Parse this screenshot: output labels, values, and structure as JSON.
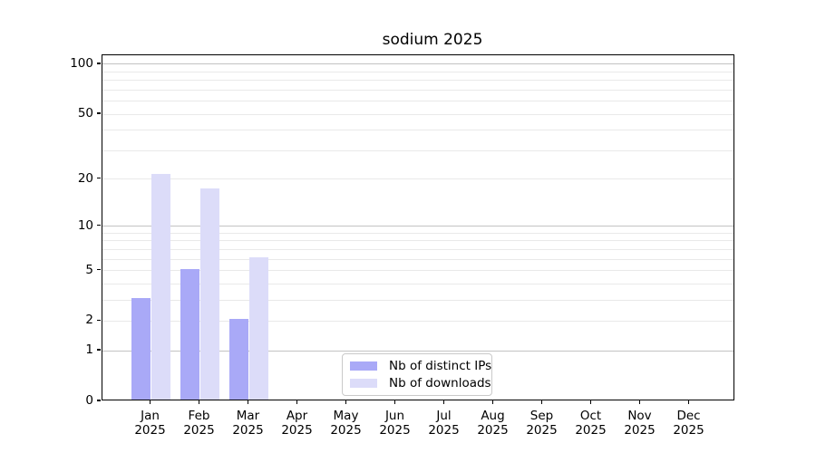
{
  "title": "sodium 2025",
  "chart_data": {
    "type": "bar",
    "title": "sodium 2025",
    "categories": [
      "Jan",
      "Feb",
      "Mar",
      "Apr",
      "May",
      "Jun",
      "Jul",
      "Aug",
      "Sep",
      "Oct",
      "Nov",
      "Dec"
    ],
    "category_year": "2025",
    "series": [
      {
        "name": "Nb of distinct IPs",
        "color": "#a9a9f7",
        "values": [
          3,
          5,
          2,
          0,
          0,
          0,
          0,
          0,
          0,
          0,
          0,
          0
        ]
      },
      {
        "name": "Nb of downloads",
        "color": "#dcdcf9",
        "values": [
          21,
          17,
          6,
          0,
          0,
          0,
          0,
          0,
          0,
          0,
          0,
          0
        ]
      }
    ],
    "yscale": "log10(1+y)",
    "ylim": [
      0,
      113
    ],
    "y_major_ticks": [
      0,
      1,
      2,
      5,
      10,
      20,
      50,
      100
    ],
    "y_minor_ticks": [
      3,
      4,
      6,
      7,
      8,
      9,
      30,
      40,
      60,
      70,
      80,
      90
    ],
    "y_decade_lines": [
      1,
      10,
      100
    ],
    "grid": "both",
    "legend_position": "lower center"
  },
  "legend": {
    "items": [
      {
        "label": "Nb of distinct IPs",
        "color": "#a9a9f7"
      },
      {
        "label": "Nb of downloads",
        "color": "#dcdcf9"
      }
    ]
  },
  "colors": {
    "background": "#ffffff",
    "bar_distinct_ips": "#a9a9f7",
    "bar_downloads": "#dcdcf9",
    "grid_decade": "#c3c3c3",
    "grid_minor": "#e9e9e9",
    "axis": "#000000",
    "text": "#000000",
    "legend_border": "#c9c9c9"
  }
}
